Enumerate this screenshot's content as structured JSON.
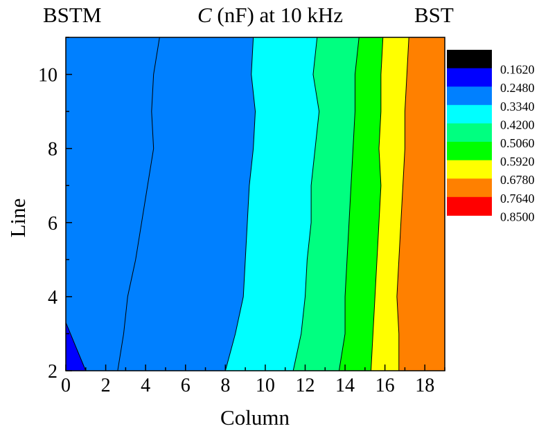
{
  "chart_data": {
    "type": "heatmap",
    "subtype": "filled-contour",
    "title_italic": "C",
    "title_rest": " (nF) at 10 kHz",
    "left_label": "BSTM",
    "right_label": "BST",
    "xlabel": "Column",
    "ylabel": "Line",
    "xlim": [
      0,
      19
    ],
    "ylim": [
      2,
      11
    ],
    "xticks": [
      0,
      2,
      4,
      6,
      8,
      10,
      12,
      14,
      16,
      18
    ],
    "yticks": [
      2,
      4,
      6,
      8,
      10
    ],
    "legend_placement": "right",
    "legend": {
      "levels": [
        "0.1620",
        "0.2480",
        "0.3340",
        "0.4200",
        "0.5060",
        "0.5920",
        "0.6780",
        "0.7640",
        "0.8500"
      ],
      "colors": [
        "#000000",
        "#0000ff",
        "#0080ff",
        "#00ffff",
        "#00ff80",
        "#00ff00",
        "#ffff00",
        "#ff8000",
        "#ff0000"
      ]
    },
    "bands": [
      {
        "color": "#0000ff",
        "boundary": [
          [
            0,
            3.3
          ],
          [
            1.0,
            2.0
          ]
        ]
      },
      {
        "color": "#0080ff",
        "boundary": [
          [
            4.7,
            11
          ],
          [
            4.4,
            10
          ],
          [
            4.3,
            9
          ],
          [
            4.4,
            8
          ],
          [
            4.1,
            7
          ],
          [
            3.8,
            6
          ],
          [
            3.5,
            5
          ],
          [
            3.1,
            4
          ],
          [
            2.9,
            3
          ],
          [
            2.6,
            2
          ]
        ]
      },
      {
        "color": "#00ffff",
        "boundary": [
          [
            9.4,
            11
          ],
          [
            9.3,
            10
          ],
          [
            9.5,
            9
          ],
          [
            9.4,
            8
          ],
          [
            9.2,
            7
          ],
          [
            9.1,
            6
          ],
          [
            9.0,
            5
          ],
          [
            8.9,
            4
          ],
          [
            8.5,
            3
          ],
          [
            8.0,
            2
          ]
        ]
      },
      {
        "color": "#00ff80",
        "boundary": [
          [
            12.6,
            11
          ],
          [
            12.4,
            10
          ],
          [
            12.7,
            9
          ],
          [
            12.5,
            8
          ],
          [
            12.3,
            7
          ],
          [
            12.3,
            6
          ],
          [
            12.1,
            5
          ],
          [
            12.0,
            4
          ],
          [
            11.8,
            3
          ],
          [
            11.4,
            2
          ]
        ]
      },
      {
        "color": "#00ff00",
        "boundary": [
          [
            14.7,
            11
          ],
          [
            14.5,
            10
          ],
          [
            14.5,
            9
          ],
          [
            14.4,
            8
          ],
          [
            14.3,
            7
          ],
          [
            14.2,
            6
          ],
          [
            14.1,
            5
          ],
          [
            14.0,
            4
          ],
          [
            14.0,
            3
          ],
          [
            13.7,
            2
          ]
        ]
      },
      {
        "color": "#ffff00",
        "boundary": [
          [
            15.9,
            11
          ],
          [
            15.8,
            10
          ],
          [
            15.8,
            9
          ],
          [
            15.7,
            8
          ],
          [
            15.8,
            7
          ],
          [
            15.7,
            6
          ],
          [
            15.6,
            5
          ],
          [
            15.5,
            4
          ],
          [
            15.4,
            3
          ],
          [
            15.3,
            2
          ]
        ]
      },
      {
        "color": "#ff8000",
        "boundary": [
          [
            17.2,
            11
          ],
          [
            17.1,
            10
          ],
          [
            17.0,
            9
          ],
          [
            17.0,
            8
          ],
          [
            16.9,
            7
          ],
          [
            16.8,
            6
          ],
          [
            16.7,
            5
          ],
          [
            16.6,
            4
          ],
          [
            16.7,
            3
          ],
          [
            16.7,
            2
          ]
        ]
      },
      {
        "color": "#ff0000",
        "boundary": [
          [
            19,
            11
          ],
          [
            19,
            2
          ]
        ]
      }
    ],
    "base_color": "#0080ff"
  }
}
